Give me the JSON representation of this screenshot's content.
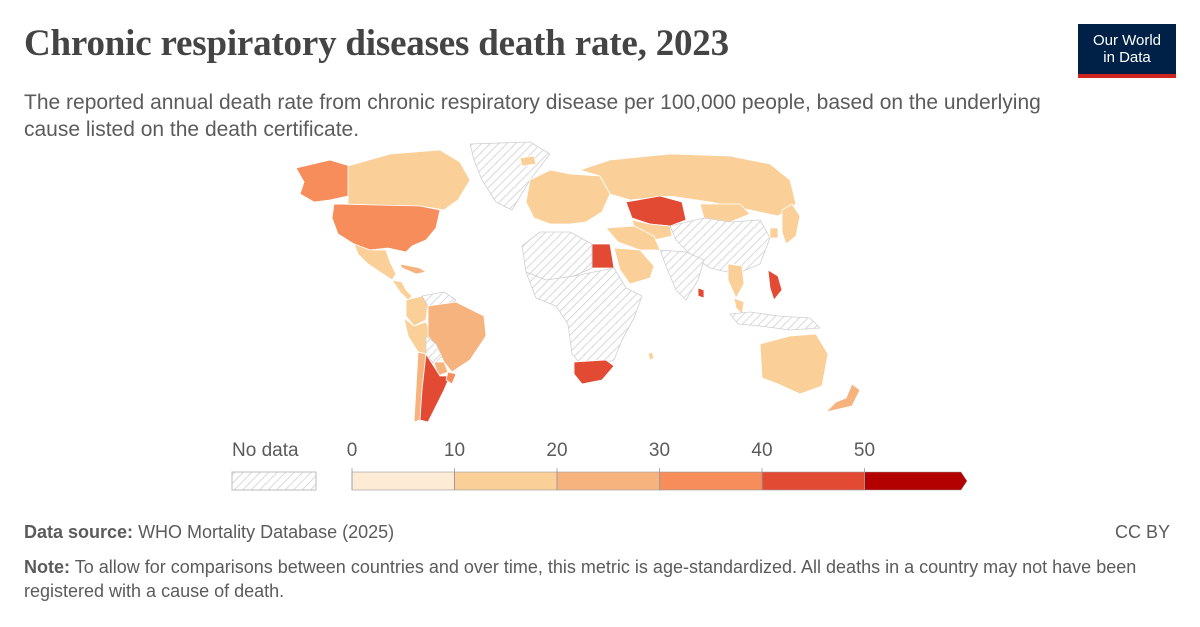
{
  "header": {
    "title": "Chronic respiratory diseases death rate, 2023",
    "subtitle": "The reported annual death rate from chronic respiratory disease per 100,000 people, based on the underlying cause listed on the death certificate."
  },
  "logo": {
    "line1": "Our World",
    "line2": "in Data",
    "bg_color": "#002147",
    "accent_color": "#ce261e"
  },
  "legend": {
    "no_data_label": "No data",
    "ticks": [
      "0",
      "10",
      "20",
      "30",
      "40",
      "50"
    ],
    "bins": [
      {
        "min": 0,
        "max": 10,
        "color": "#fdebd5"
      },
      {
        "min": 10,
        "max": 20,
        "color": "#fbcf98"
      },
      {
        "min": 20,
        "max": 30,
        "color": "#f7b37e"
      },
      {
        "min": 30,
        "max": 40,
        "color": "#f68d5a"
      },
      {
        "min": 40,
        "max": 50,
        "color": "#e34a33"
      },
      {
        "min": 50,
        "max": null,
        "color": "#b30000"
      }
    ]
  },
  "footer": {
    "source_label": "Data source:",
    "source_text": "WHO Mortality Database (2025)",
    "license": "CC BY",
    "note_label": "Note:",
    "note_text": "To allow for comparisons between countries and over time, this metric is age-standardized. All deaths in a country may not have been registered with a cause of death."
  },
  "map_data": {
    "type": "choropleth",
    "regions": [
      {
        "name": "Canada",
        "bin": 1
      },
      {
        "name": "Alaska",
        "bin": 3
      },
      {
        "name": "United States",
        "bin": 3
      },
      {
        "name": "Greenland",
        "bin": null
      },
      {
        "name": "Mexico",
        "bin": 1
      },
      {
        "name": "Central America",
        "bin": 1
      },
      {
        "name": "Caribbean",
        "bin": 2
      },
      {
        "name": "Colombia",
        "bin": 1
      },
      {
        "name": "Venezuela",
        "bin": null
      },
      {
        "name": "Peru",
        "bin": 1
      },
      {
        "name": "Brazil",
        "bin": 2
      },
      {
        "name": "Bolivia",
        "bin": null
      },
      {
        "name": "Paraguay",
        "bin": 2
      },
      {
        "name": "Chile",
        "bin": 2
      },
      {
        "name": "Argentina",
        "bin": 4
      },
      {
        "name": "Uruguay",
        "bin": 3
      },
      {
        "name": "Iceland",
        "bin": 1
      },
      {
        "name": "Europe",
        "bin": 1
      },
      {
        "name": "Russia",
        "bin": 1
      },
      {
        "name": "Kazakhstan",
        "bin": 4
      },
      {
        "name": "Central Asia",
        "bin": 1
      },
      {
        "name": "Mongolia",
        "bin": 1
      },
      {
        "name": "China",
        "bin": null
      },
      {
        "name": "India",
        "bin": null
      },
      {
        "name": "Egypt",
        "bin": 4
      },
      {
        "name": "Saudi Arabia",
        "bin": 1
      },
      {
        "name": "Middle East",
        "bin": 1
      },
      {
        "name": "North Africa",
        "bin": null
      },
      {
        "name": "Sub-Saharan Africa",
        "bin": null
      },
      {
        "name": "South Africa",
        "bin": 4
      },
      {
        "name": "Mauritius",
        "bin": 1
      },
      {
        "name": "Sri Lanka",
        "bin": 4
      },
      {
        "name": "Thailand",
        "bin": 1
      },
      {
        "name": "Malaysia",
        "bin": 1
      },
      {
        "name": "Philippines",
        "bin": 4
      },
      {
        "name": "Japan",
        "bin": 1
      },
      {
        "name": "South Korea",
        "bin": 1
      },
      {
        "name": "Indonesia",
        "bin": null
      },
      {
        "name": "Australia",
        "bin": 1
      },
      {
        "name": "New Zealand",
        "bin": 2
      }
    ]
  }
}
